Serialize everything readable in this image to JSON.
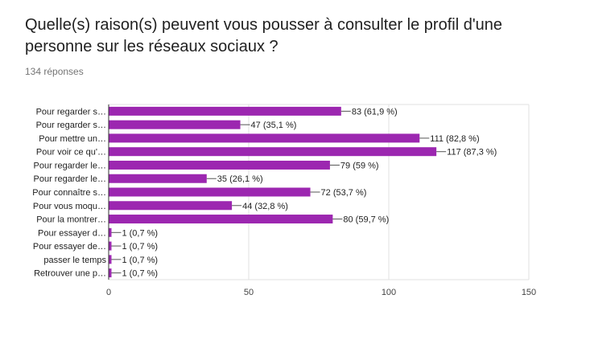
{
  "question": {
    "title": "Quelle(s) raison(s) peuvent vous pousser à consulter le profil d'une personne sur les réseaux sociaux ?",
    "responses": "134 réponses"
  },
  "chart_data": {
    "type": "bar",
    "orientation": "horizontal",
    "categories": [
      "Pour regarder s…",
      "Pour regarder s…",
      "Pour mettre un…",
      "Pour voir ce qu'…",
      "Pour regarder le…",
      "Pour regarder le…",
      "Pour connaître s…",
      "Pour vous moqu…",
      "Pour la montrer…",
      "Pour essayer d…",
      "Pour essayer de…",
      "passer le temps",
      "Retrouver une p…"
    ],
    "values": [
      83,
      47,
      111,
      117,
      79,
      35,
      72,
      44,
      80,
      1,
      1,
      1,
      1
    ],
    "data_labels": [
      "83 (61,9 %)",
      "47 (35,1 %)",
      "111 (82,8 %)",
      "117 (87,3 %)",
      "79 (59 %)",
      "35 (26,1 %)",
      "72 (53,7 %)",
      "44 (32,8 %)",
      "80 (59,7 %)",
      "1 (0,7 %)",
      "1 (0,7 %)",
      "1 (0,7 %)",
      "1 (0,7 %)"
    ],
    "xlim": [
      0,
      150
    ],
    "xticks": [
      0,
      50,
      100,
      150
    ],
    "grid": true,
    "colors": {
      "bar": "#9c27b0",
      "grid": "#e0e0e0",
      "axis": "#333333"
    }
  }
}
